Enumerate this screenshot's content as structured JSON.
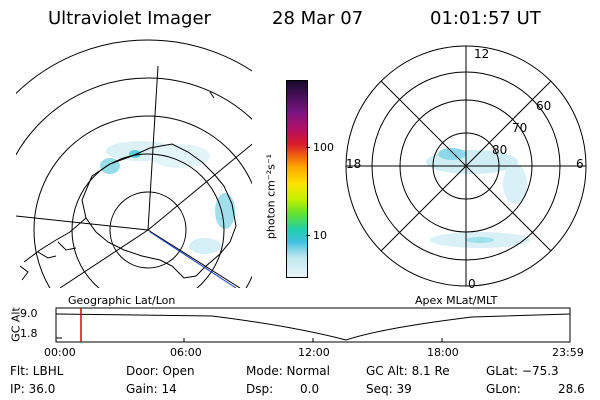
{
  "header": {
    "title": "Ultraviolet Imager",
    "date": "28 Mar 07",
    "time": "01:01:57 UT"
  },
  "colorbar": {
    "label": "photon cm⁻²s⁻¹",
    "ticks": [
      "100",
      "10"
    ],
    "colors": [
      "#1a0a2e",
      "#4a0f5c",
      "#7a1580",
      "#b0106a",
      "#d81a2c",
      "#f06010",
      "#ffa800",
      "#ffe000",
      "#c8f000",
      "#60e030",
      "#20d0b0",
      "#40c0e0",
      "#c0e8f0",
      "#e8f4f8"
    ]
  },
  "left_map": {
    "label": "Geographic Lat/Lon"
  },
  "right_map": {
    "label": "Apex MLat/MLT",
    "mlt_labels": [
      "12",
      "18",
      "6",
      "0"
    ],
    "lat_labels": [
      "60",
      "70",
      "80"
    ]
  },
  "timeline": {
    "ylabel": "GC Alt",
    "yticks": [
      "9.0",
      "1.8"
    ],
    "xticks": [
      "00:00",
      "06:00",
      "12:00",
      "18:00",
      "23:59"
    ]
  },
  "status": {
    "flt": "Flt: LBHL",
    "ip": "IP: 36.0",
    "door": "Door: Open",
    "gain": "Gain: 14",
    "mode": "Mode: Normal",
    "dsp": "Dsp:",
    "dsp_val": "0.0",
    "gcalt": "GC Alt: 8.1 Re",
    "seq": "Seq: 39",
    "glat": "GLat: −75.3",
    "glon": "GLon:",
    "glon_val": "28.6"
  }
}
